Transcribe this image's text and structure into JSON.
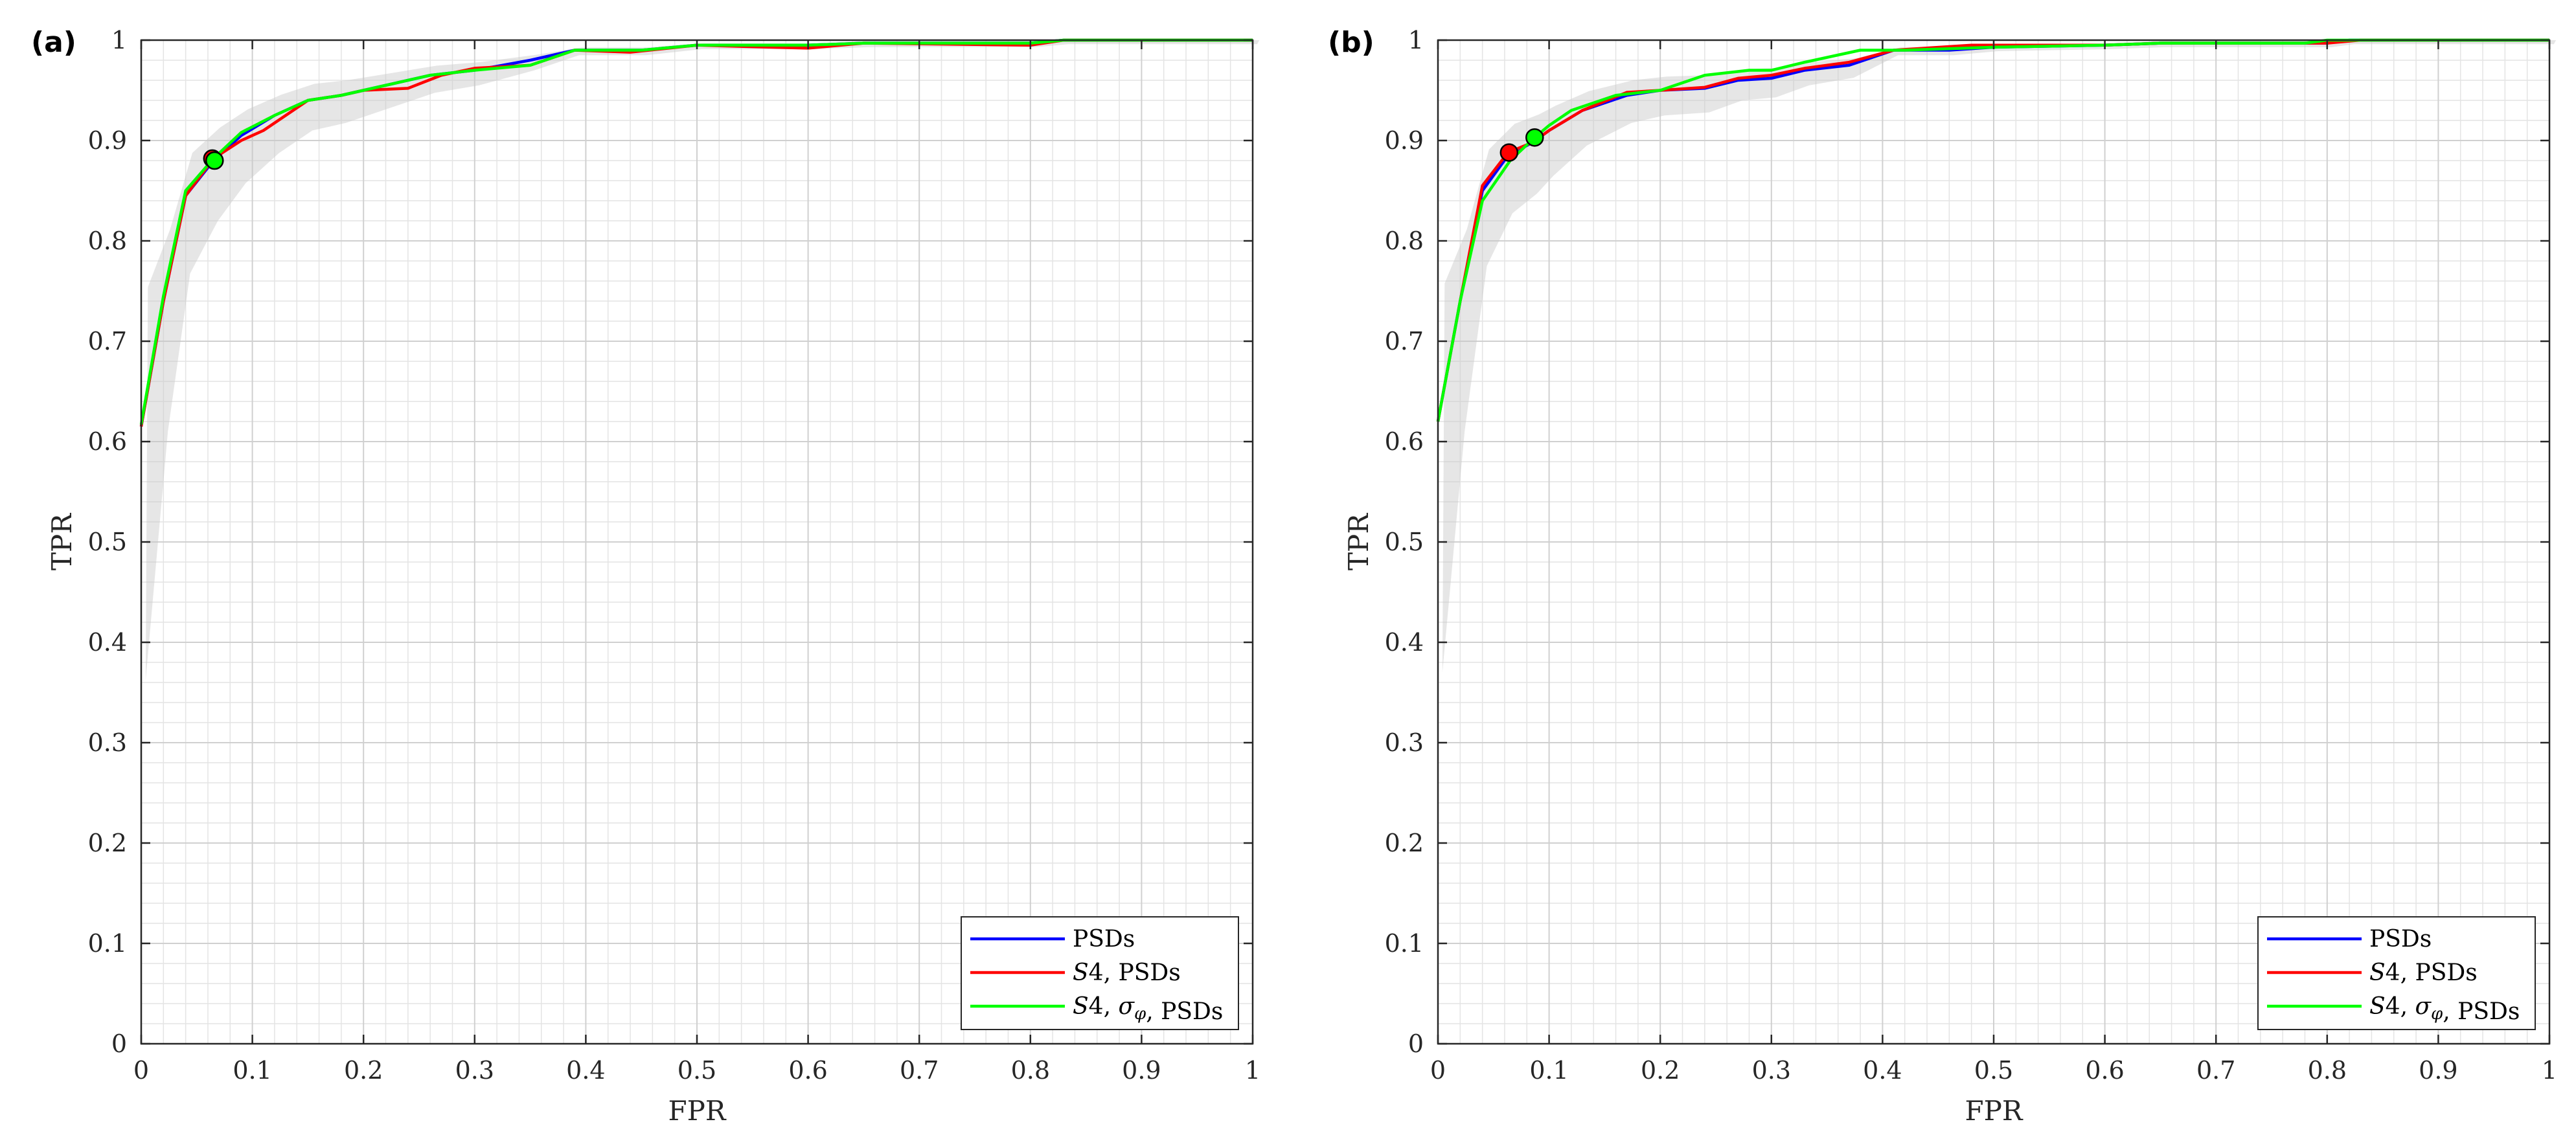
{
  "chart_data": [
    {
      "type": "line",
      "panel_label": "(a)",
      "xlabel": "FPR",
      "ylabel": "TPR",
      "xlim": [
        0,
        1
      ],
      "ylim": [
        0,
        1
      ],
      "xticks": [
        "0",
        "0.1",
        "0.2",
        "0.3",
        "0.4",
        "0.5",
        "0.6",
        "0.7",
        "0.8",
        "0.9",
        "1"
      ],
      "yticks": [
        "0",
        "0.1",
        "0.2",
        "0.3",
        "0.4",
        "0.5",
        "0.6",
        "0.7",
        "0.8",
        "0.9",
        "1"
      ],
      "grid": true,
      "minor_grid": true,
      "legend_position": "bottom-right",
      "series": [
        {
          "name": "PSDs",
          "color": "#0000ff",
          "x": [
            0,
            0.02,
            0.04,
            0.065,
            0.09,
            0.12,
            0.15,
            0.18,
            0.22,
            0.26,
            0.3,
            0.35,
            0.39,
            0.45,
            0.5,
            0.6,
            0.65,
            0.8,
            0.83,
            1
          ],
          "y": [
            0.615,
            0.74,
            0.845,
            0.88,
            0.905,
            0.925,
            0.94,
            0.945,
            0.955,
            0.965,
            0.97,
            0.98,
            0.99,
            0.99,
            0.995,
            0.995,
            0.997,
            0.997,
            1,
            1
          ]
        },
        {
          "name": "S4, PSDs",
          "color": "#ff0000",
          "x": [
            0,
            0.02,
            0.04,
            0.065,
            0.09,
            0.11,
            0.15,
            0.18,
            0.2,
            0.24,
            0.27,
            0.3,
            0.35,
            0.39,
            0.44,
            0.5,
            0.6,
            0.65,
            0.8,
            0.83,
            1
          ],
          "y": [
            0.615,
            0.74,
            0.845,
            0.882,
            0.9,
            0.91,
            0.94,
            0.945,
            0.95,
            0.952,
            0.965,
            0.972,
            0.975,
            0.99,
            0.988,
            0.995,
            0.992,
            0.997,
            0.995,
            1,
            1
          ]
        },
        {
          "name": "S4, σφ, PSDs",
          "color": "#00ff00",
          "x": [
            0,
            0.02,
            0.04,
            0.065,
            0.09,
            0.12,
            0.15,
            0.18,
            0.22,
            0.26,
            0.3,
            0.35,
            0.39,
            0.45,
            0.5,
            0.6,
            0.65,
            0.8,
            0.83,
            1
          ],
          "y": [
            0.617,
            0.745,
            0.85,
            0.882,
            0.908,
            0.925,
            0.94,
            0.945,
            0.955,
            0.965,
            0.97,
            0.975,
            0.99,
            0.99,
            0.995,
            0.995,
            0.997,
            0.997,
            1,
            1
          ]
        }
      ],
      "operating_points": [
        {
          "series": "S4, PSDs",
          "color": "#ff0000",
          "x": 0.064,
          "y": 0.882
        },
        {
          "series": "S4, σφ, PSDs",
          "color": "#00ff00",
          "x": 0.066,
          "y": 0.88
        }
      ]
    },
    {
      "type": "line",
      "panel_label": "(b)",
      "xlabel": "FPR",
      "ylabel": "TPR",
      "xlim": [
        0,
        1
      ],
      "ylim": [
        0,
        1
      ],
      "xticks": [
        "0",
        "0.1",
        "0.2",
        "0.3",
        "0.4",
        "0.5",
        "0.6",
        "0.7",
        "0.8",
        "0.9",
        "1"
      ],
      "yticks": [
        "0",
        "0.1",
        "0.2",
        "0.3",
        "0.4",
        "0.5",
        "0.6",
        "0.7",
        "0.8",
        "0.9",
        "1"
      ],
      "grid": true,
      "minor_grid": true,
      "legend_position": "bottom-right",
      "series": [
        {
          "name": "PSDs",
          "color": "#0000ff",
          "x": [
            0,
            0.02,
            0.04,
            0.063,
            0.085,
            0.1,
            0.13,
            0.17,
            0.2,
            0.24,
            0.27,
            0.3,
            0.33,
            0.37,
            0.41,
            0.46,
            0.5,
            0.6,
            0.65,
            0.8,
            0.82,
            1
          ],
          "y": [
            0.62,
            0.74,
            0.85,
            0.885,
            0.898,
            0.91,
            0.93,
            0.945,
            0.95,
            0.952,
            0.96,
            0.962,
            0.97,
            0.975,
            0.99,
            0.99,
            0.993,
            0.995,
            0.997,
            0.997,
            1,
            1
          ]
        },
        {
          "name": "S4, PSDs",
          "color": "#ff0000",
          "x": [
            0,
            0.02,
            0.04,
            0.063,
            0.085,
            0.1,
            0.13,
            0.17,
            0.2,
            0.24,
            0.27,
            0.3,
            0.33,
            0.37,
            0.41,
            0.48,
            0.6,
            0.65,
            0.8,
            0.83,
            1
          ],
          "y": [
            0.62,
            0.74,
            0.855,
            0.888,
            0.898,
            0.91,
            0.93,
            0.948,
            0.95,
            0.953,
            0.962,
            0.965,
            0.972,
            0.978,
            0.99,
            0.995,
            0.995,
            0.997,
            0.997,
            1,
            1
          ]
        },
        {
          "name": "S4, σφ, PSDs",
          "color": "#00ff00",
          "x": [
            0,
            0.02,
            0.04,
            0.065,
            0.087,
            0.1,
            0.12,
            0.16,
            0.2,
            0.24,
            0.28,
            0.3,
            0.33,
            0.38,
            0.42,
            0.5,
            0.6,
            0.65,
            0.78,
            0.8,
            1
          ],
          "y": [
            0.62,
            0.74,
            0.84,
            0.88,
            0.903,
            0.915,
            0.93,
            0.945,
            0.95,
            0.965,
            0.97,
            0.97,
            0.978,
            0.99,
            0.99,
            0.993,
            0.995,
            0.997,
            0.997,
            1,
            1
          ]
        }
      ],
      "operating_points": [
        {
          "series": "S4, PSDs",
          "color": "#ff0000",
          "x": 0.064,
          "y": 0.888
        },
        {
          "series": "S4, σφ, PSDs",
          "color": "#00ff00",
          "x": 0.087,
          "y": 0.903
        }
      ]
    }
  ]
}
